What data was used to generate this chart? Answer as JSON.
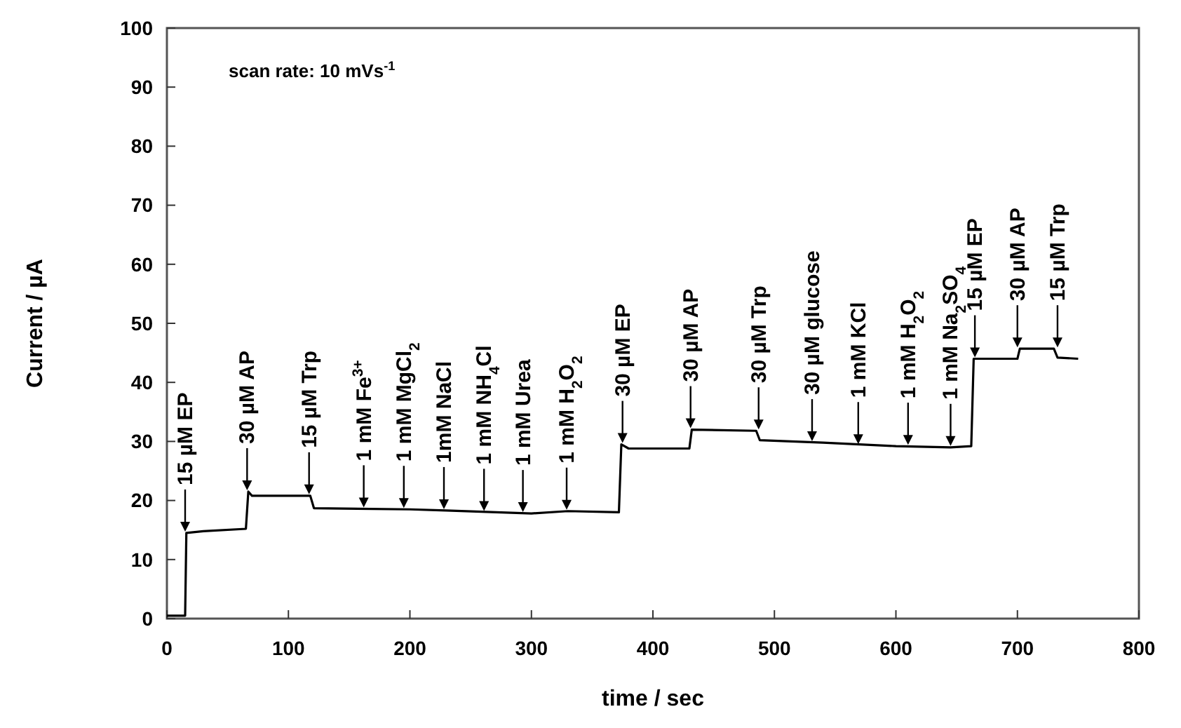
{
  "chart_data": {
    "type": "line",
    "xlabel": "time / sec",
    "ylabel": "Current / µA",
    "xlim": [
      0,
      800
    ],
    "xticks": [
      0,
      100,
      200,
      300,
      400,
      500,
      600,
      700,
      800
    ],
    "ylim": [
      0,
      100
    ],
    "yticks": [
      0,
      10,
      20,
      30,
      40,
      50,
      60,
      70,
      80,
      90,
      100
    ],
    "grid": false,
    "marker": "none",
    "line_style": "solid",
    "series": [
      {
        "color": "#000000",
        "x": [
          0,
          15,
          16,
          30,
          65,
          67,
          70,
          118,
          121,
          200,
          230,
          300,
          330,
          372,
          374,
          380,
          430,
          432,
          485,
          488,
          540,
          600,
          645,
          662,
          664,
          700,
          702,
          730,
          733,
          750
        ],
        "values": [
          0.5,
          0.5,
          14.5,
          14.8,
          15.2,
          21.5,
          20.8,
          20.8,
          18.7,
          18.5,
          18.3,
          17.8,
          18.2,
          18,
          29.5,
          28.8,
          28.8,
          32,
          31.8,
          30.2,
          29.8,
          29.2,
          29,
          29.2,
          44,
          44,
          45.7,
          45.7,
          44.2,
          44
        ]
      }
    ],
    "annotations": [
      "scan rate: 10 mVs$^{-1}$",
      {
        "text": "15 µM EP",
        "x": 15,
        "y": 14.5
      },
      {
        "text": "30 µM AP",
        "x": 66,
        "y": 21.5
      },
      {
        "text": "15 µM Trp",
        "x": 117,
        "y": 20.8
      },
      {
        "text": "1 mM Fe$^{3+}$",
        "x": 162,
        "y": 18.6
      },
      {
        "text": "1 mM MgCl$_{2}$",
        "x": 195,
        "y": 18.5
      },
      {
        "text": "1mM NaCl",
        "x": 228,
        "y": 18.3
      },
      {
        "text": "1 mM NH$_{4}$Cl",
        "x": 261,
        "y": 18
      },
      {
        "text": "1 mM Urea",
        "x": 293,
        "y": 17.8
      },
      {
        "text": "1 mM H$_{2}$O$_{2}$",
        "x": 329,
        "y": 18.2
      },
      {
        "text": "30 µM EP",
        "x": 375,
        "y": 29.5
      },
      {
        "text": "30 µM AP",
        "x": 431,
        "y": 32
      },
      {
        "text": "30 µM Trp",
        "x": 487,
        "y": 31.8
      },
      {
        "text": "30 µM glucose",
        "x": 531,
        "y": 29.8
      },
      {
        "text": "1 mM KCl",
        "x": 569,
        "y": 29.3
      },
      {
        "text": "1 mM H$_{2}$O$_{2}$",
        "x": 610,
        "y": 29.2
      },
      {
        "text": "1 mM Na$_{2}$SO$_{4}$",
        "x": 645,
        "y": 29
      },
      {
        "text": "15 µM EP",
        "x": 665,
        "y": 44
      },
      {
        "text": "30 µM AP",
        "x": 700,
        "y": 45.7
      },
      {
        "text": "15 µM Trp",
        "x": 733,
        "y": 45.7
      }
    ]
  }
}
